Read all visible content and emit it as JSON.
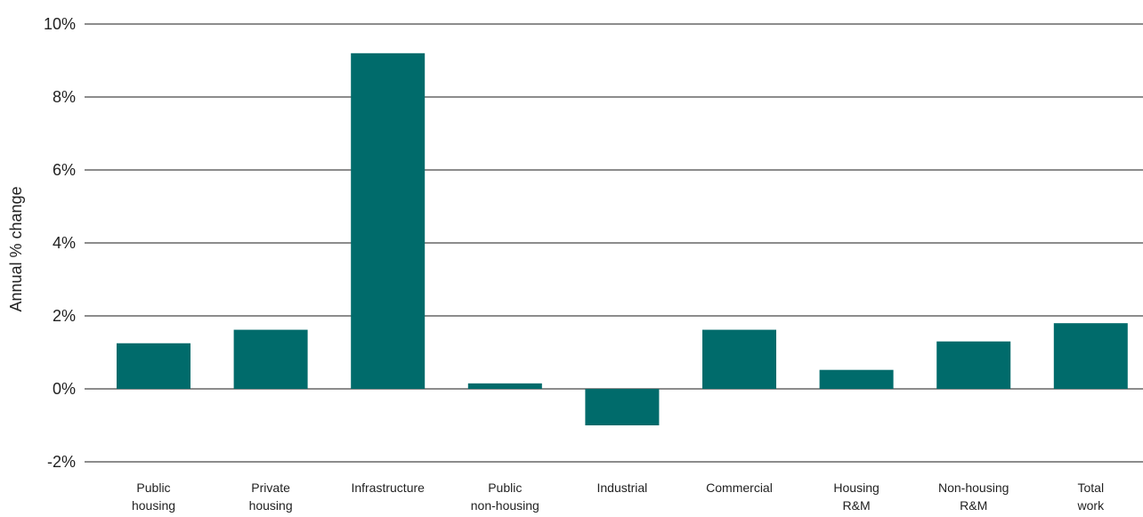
{
  "chart_data": {
    "type": "bar",
    "categories": [
      [
        "Public",
        "housing"
      ],
      [
        "Private",
        "housing"
      ],
      [
        "Infrastructure"
      ],
      [
        "Public",
        "non-housing"
      ],
      [
        "Industrial"
      ],
      [
        "Commercial"
      ],
      [
        "Housing",
        "R&M"
      ],
      [
        "Non-housing",
        "R&M"
      ],
      [
        "Total",
        "work"
      ]
    ],
    "values": [
      1.25,
      1.62,
      9.2,
      0.15,
      -1.0,
      1.62,
      0.52,
      1.3,
      1.8
    ],
    "ylabel": "Annual % change",
    "ylim": [
      -2,
      10
    ],
    "yticks": [
      -2,
      0,
      2,
      4,
      6,
      8,
      10
    ],
    "ytick_labels": [
      "-2%",
      "0%",
      "2%",
      "4%",
      "6%",
      "8%",
      "10%"
    ],
    "grid": true,
    "bar_color": "#006b6b",
    "grid_color": "#1a1a1a"
  }
}
